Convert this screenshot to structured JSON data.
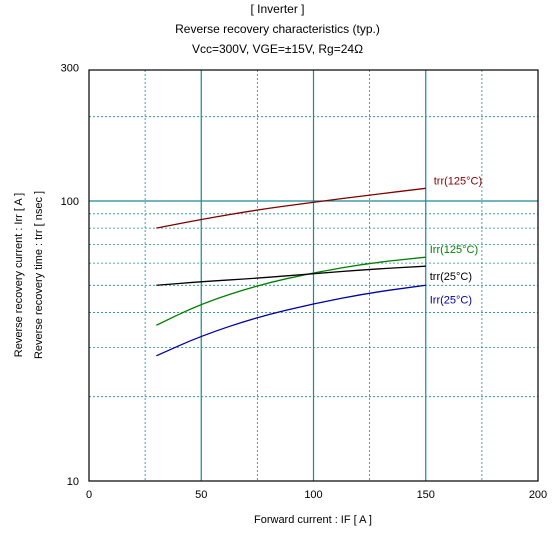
{
  "title_lines": [
    "[ Inverter ]",
    "Reverse recovery characteristics  (typ.)",
    "Vcc=300V, VGE=±15V, Rg=24Ω"
  ],
  "chart_data": {
    "type": "line",
    "title": "[ Inverter ]  Reverse recovery characteristics  (typ.)",
    "conditions": "Vcc=300V, VGE=±15V, Rg=24Ω",
    "xlabel": "Forward current  :  IF  [ A ]",
    "ylabel": [
      "Reverse recovery current  :  Irr  [ A ]",
      "Reverse recovery time  :  trr  [ nsec ]"
    ],
    "xlim": [
      0,
      200
    ],
    "ylim": [
      10,
      300
    ],
    "yscale": "log",
    "grid": true,
    "x_ticks": [
      "0",
      "50",
      "100",
      "150",
      "200"
    ],
    "y_ticks": [
      "10",
      "100",
      "300"
    ],
    "series": [
      {
        "name": "trr(125°C)",
        "color": "#800000",
        "x": [
          30,
          50,
          75,
          100,
          125,
          150
        ],
        "y": [
          80,
          86,
          93,
          99,
          105,
          111
        ]
      },
      {
        "name": "Irr(125°C)",
        "color": "#008000",
        "x": [
          30,
          50,
          75,
          100,
          125,
          150
        ],
        "y": [
          36,
          43,
          50,
          55.5,
          60,
          63
        ]
      },
      {
        "name": "trr(25°C)",
        "color": "#000000",
        "x": [
          30,
          50,
          75,
          100,
          125,
          150
        ],
        "y": [
          50,
          51.5,
          53,
          55,
          57,
          58.5
        ]
      },
      {
        "name": "Irr(25°C)",
        "color": "#0000a0",
        "x": [
          30,
          50,
          75,
          100,
          125,
          150
        ],
        "y": [
          28,
          33,
          38.5,
          43,
          47,
          50
        ]
      }
    ]
  }
}
